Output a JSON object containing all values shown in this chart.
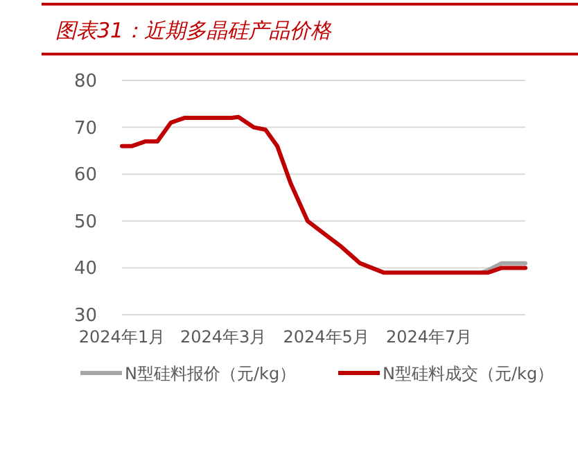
{
  "chart_data": {
    "type": "line",
    "title": "图表31：近期多晶硅产品价格",
    "x": [
      "2024-01-01",
      "2024-01-07",
      "2024-01-15",
      "2024-01-22",
      "2024-01-30",
      "2024-02-07",
      "2024-03-06",
      "2024-03-10",
      "2024-03-19",
      "2024-03-26",
      "2024-04-02",
      "2024-04-10",
      "2024-04-20",
      "2024-04-29",
      "2024-05-10",
      "2024-05-21",
      "2024-06-04",
      "2024-08-01",
      "2024-08-05",
      "2024-08-13",
      "2024-08-27"
    ],
    "series": [
      {
        "name": "N型硅料报价（元/kg）",
        "color": "#a6a6a6",
        "values": [
          null,
          null,
          null,
          null,
          null,
          null,
          null,
          null,
          null,
          null,
          null,
          null,
          null,
          null,
          null,
          null,
          null,
          39,
          39.5,
          41,
          41
        ]
      },
      {
        "name": "N型硅料成交（元/kg）",
        "color": "#c00000",
        "values": [
          66,
          66,
          67,
          67,
          71,
          72,
          72,
          72.2,
          70,
          69.5,
          66,
          58,
          50,
          47.5,
          44.5,
          41,
          39,
          39,
          39,
          40,
          40
        ]
      }
    ],
    "xlim": [
      "2024-01-01",
      "2024-08-27"
    ],
    "xticks": [
      {
        "value": "2024-01-01",
        "label": "2024年1月"
      },
      {
        "value": "2024-03-01",
        "label": "2024年3月"
      },
      {
        "value": "2024-05-01",
        "label": "2024年5月"
      },
      {
        "value": "2024-07-01",
        "label": "2024年7月"
      }
    ],
    "ylim": [
      30,
      80
    ],
    "yticks": [
      30,
      40,
      50,
      60,
      70,
      80
    ],
    "grid": "y",
    "legend": "bottom"
  }
}
